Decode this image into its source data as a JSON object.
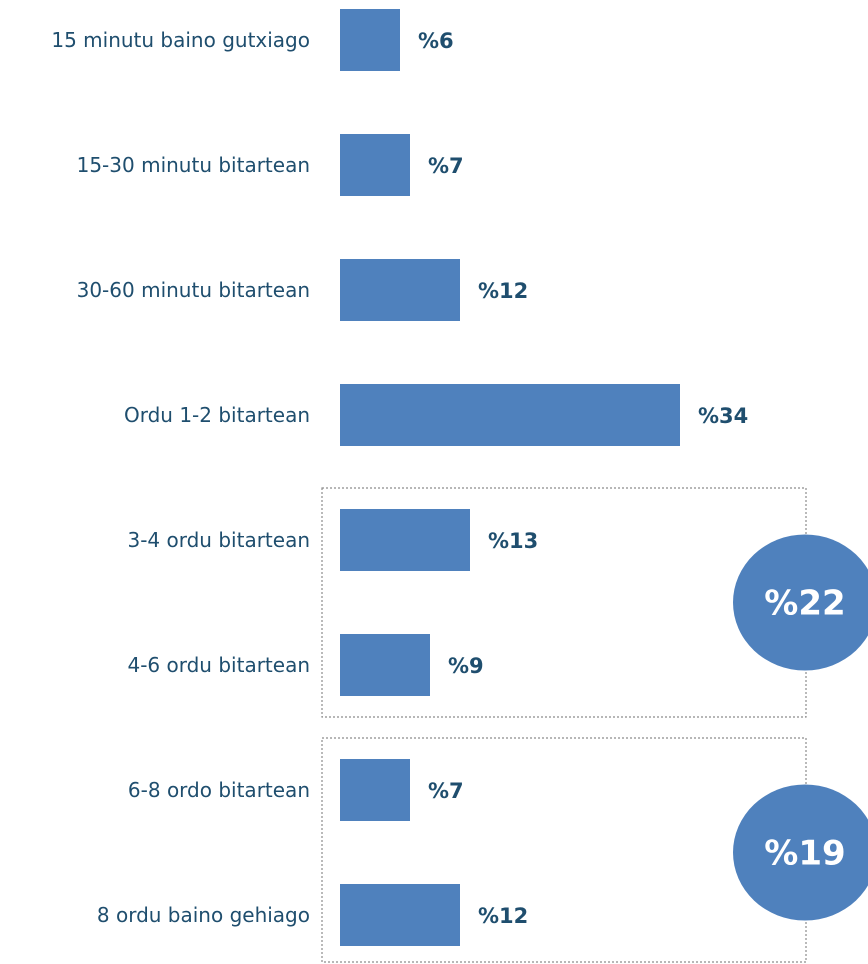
{
  "chart_data": {
    "type": "bar",
    "orientation": "horizontal",
    "categories": [
      "15 minutu baino gutxiago",
      "15-30 minutu bitartean",
      "30-60 minutu bitartean",
      "Ordu 1-2 bitartean",
      "3-4 ordu bitartean",
      "4-6 ordu bitartean",
      "6-8 ordo bitartean",
      "8 ordu baino gehiago"
    ],
    "values": [
      6,
      7,
      12,
      34,
      13,
      9,
      7,
      12
    ],
    "value_labels": [
      "%6",
      "%7",
      "%12",
      "%34",
      "%13",
      "%9",
      "%7",
      "%12"
    ],
    "xlim": [
      0,
      34
    ],
    "grid": false,
    "bar_color": "#4f81bd",
    "groups": [
      {
        "members": [
          4,
          5
        ],
        "total_label": "%22"
      },
      {
        "members": [
          6,
          7
        ],
        "total_label": "%19"
      }
    ],
    "group_circle_color": "#4f81bd",
    "group_box_color": "#8c8c8c"
  }
}
